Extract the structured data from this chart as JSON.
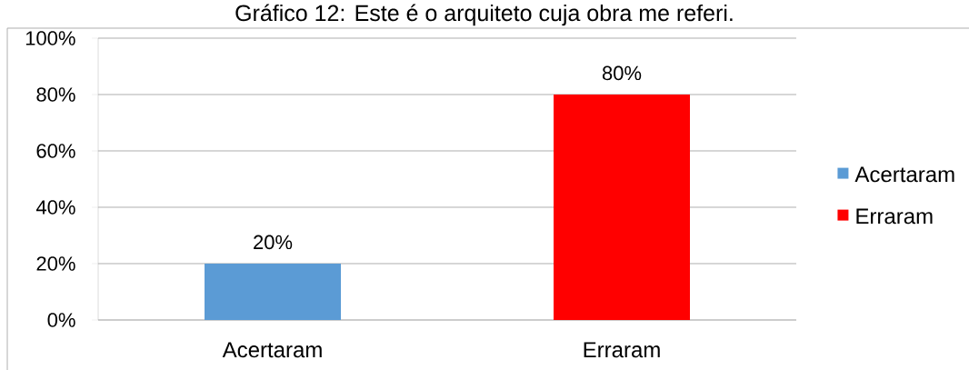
{
  "chart_data": {
    "type": "bar",
    "title": "Gráfico 12: Este é o arquiteto cuja obra me referi.",
    "categories": [
      "Acertaram",
      "Erraram"
    ],
    "series": [
      {
        "name": "Acertaram",
        "color": "#5b9bd5",
        "values": [
          20,
          null
        ],
        "value_labels": [
          "20%",
          null
        ]
      },
      {
        "name": "Erraram",
        "color": "#ff0000",
        "values": [
          null,
          80
        ],
        "value_labels": [
          null,
          "80%"
        ]
      }
    ],
    "ylim": [
      0,
      100
    ],
    "yticks": [
      {
        "value": 0,
        "label": "0%"
      },
      {
        "value": 20,
        "label": "20%"
      },
      {
        "value": 40,
        "label": "40%"
      },
      {
        "value": 60,
        "label": "60%"
      },
      {
        "value": 80,
        "label": "80%"
      },
      {
        "value": 100,
        "label": "100%"
      }
    ],
    "grid": "y",
    "legend": "right"
  }
}
